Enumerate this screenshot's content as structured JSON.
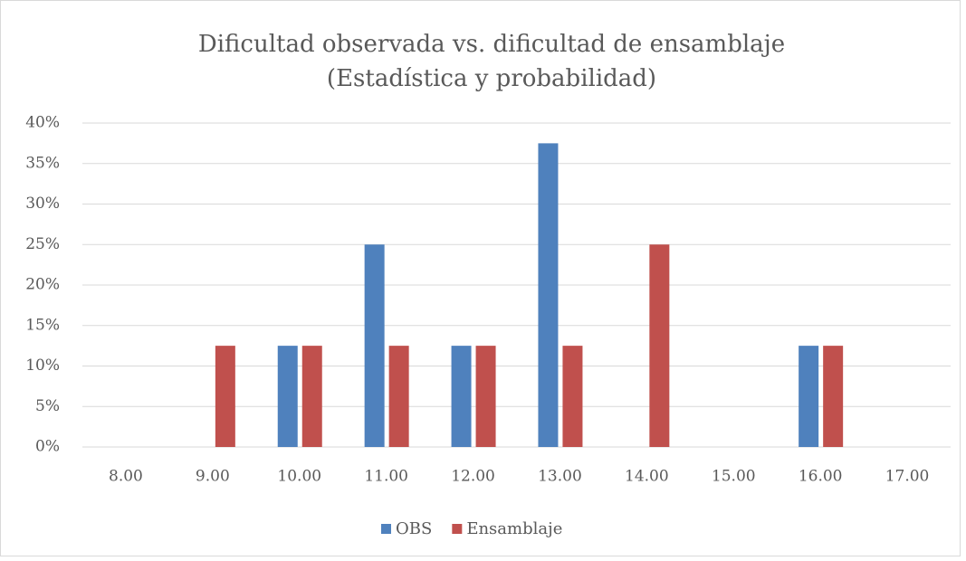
{
  "chart_data": {
    "type": "bar",
    "title": [
      "Dificultad observada vs. dificultad de ensamblaje",
      "(Estadística y probabilidad)"
    ],
    "categories": [
      "8.00",
      "9.00",
      "10.00",
      "11.00",
      "12.00",
      "13.00",
      "14.00",
      "15.00",
      "16.00",
      "17.00"
    ],
    "series": [
      {
        "name": "OBS",
        "color": "#4f81bd",
        "values": [
          0,
          0,
          12.5,
          25,
          12.5,
          37.5,
          0,
          0,
          12.5,
          0
        ]
      },
      {
        "name": "Ensamblaje",
        "color": "#c0504d",
        "values": [
          0,
          12.5,
          12.5,
          12.5,
          12.5,
          12.5,
          25,
          0,
          12.5,
          0
        ]
      }
    ],
    "ylim": [
      0,
      40
    ],
    "yticks": [
      {
        "value": 0,
        "label": "0%"
      },
      {
        "value": 5,
        "label": "5%"
      },
      {
        "value": 10,
        "label": "10%"
      },
      {
        "value": 15,
        "label": "15%"
      },
      {
        "value": 20,
        "label": "20%"
      },
      {
        "value": 25,
        "label": "25%"
      },
      {
        "value": 30,
        "label": "30%"
      },
      {
        "value": 35,
        "label": "35%"
      },
      {
        "value": 40,
        "label": "40%"
      }
    ],
    "grid": true,
    "legend": "bottom"
  }
}
